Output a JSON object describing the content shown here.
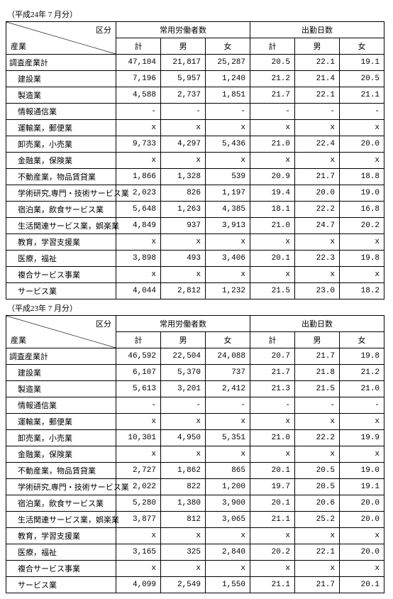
{
  "tables": [
    {
      "period": "（平成24年 7 月分）",
      "headers": {
        "kubun": "区分",
        "sangyo": "産業",
        "group1": "常用労働者数",
        "group2": "出勤日数",
        "cols": [
          "計",
          "男",
          "女",
          "計",
          "男",
          "女"
        ]
      },
      "rows": [
        {
          "label": "調査産業計",
          "indent": false,
          "cells": [
            "47,104",
            "21,817",
            "25,287",
            "20.5",
            "22.1",
            "19.1"
          ]
        },
        {
          "label": "建設業",
          "indent": true,
          "cells": [
            "7,196",
            "5,957",
            "1,240",
            "21.2",
            "21.4",
            "20.5"
          ]
        },
        {
          "label": "製造業",
          "indent": true,
          "cells": [
            "4,588",
            "2,737",
            "1,851",
            "21.7",
            "22.1",
            "21.1"
          ]
        },
        {
          "label": "情報通信業",
          "indent": true,
          "cells": [
            "-",
            "-",
            "-",
            "-",
            "-",
            "-"
          ]
        },
        {
          "label": "運輸業，郵便業",
          "indent": true,
          "cells": [
            "x",
            "x",
            "x",
            "x",
            "x",
            "x"
          ]
        },
        {
          "label": "卸売業，小売業",
          "indent": true,
          "cells": [
            "9,733",
            "4,297",
            "5,436",
            "21.0",
            "22.4",
            "20.0"
          ]
        },
        {
          "label": "金融業，保険業",
          "indent": true,
          "cells": [
            "x",
            "x",
            "x",
            "x",
            "x",
            "x"
          ]
        },
        {
          "label": "不動産業，物品賃貸業",
          "indent": true,
          "cells": [
            "1,866",
            "1,328",
            "539",
            "20.9",
            "21.7",
            "18.8"
          ]
        },
        {
          "label": "学術研究,専門・技術サービス業",
          "indent": true,
          "cells": [
            "2,023",
            "826",
            "1,197",
            "19.4",
            "20.0",
            "19.0"
          ]
        },
        {
          "label": "宿泊業，飲食サービス業",
          "indent": true,
          "cells": [
            "5,648",
            "1,263",
            "4,385",
            "18.1",
            "22.2",
            "16.8"
          ]
        },
        {
          "label": "生活関連サービス業，娯楽業",
          "indent": true,
          "cells": [
            "4,849",
            "937",
            "3,913",
            "21.0",
            "24.7",
            "20.2"
          ]
        },
        {
          "label": "教育，学習支援業",
          "indent": true,
          "cells": [
            "x",
            "x",
            "x",
            "x",
            "x",
            "x"
          ]
        },
        {
          "label": "医療，福祉",
          "indent": true,
          "cells": [
            "3,898",
            "493",
            "3,406",
            "20.1",
            "22.3",
            "19.8"
          ]
        },
        {
          "label": "複合サービス事業",
          "indent": true,
          "cells": [
            "x",
            "x",
            "x",
            "x",
            "x",
            "x"
          ]
        },
        {
          "label": "サービス業",
          "indent": true,
          "cells": [
            "4,044",
            "2,812",
            "1,232",
            "21.5",
            "23.0",
            "18.2"
          ]
        }
      ]
    },
    {
      "period": "（平成23年 7 月分）",
      "headers": {
        "kubun": "区分",
        "sangyo": "産業",
        "group1": "常用労働者数",
        "group2": "出勤日数",
        "cols": [
          "計",
          "男",
          "女",
          "計",
          "男",
          "女"
        ]
      },
      "rows": [
        {
          "label": "調査産業計",
          "indent": false,
          "cells": [
            "46,592",
            "22,504",
            "24,088",
            "20.7",
            "21.7",
            "19.8"
          ]
        },
        {
          "label": "建設業",
          "indent": true,
          "cells": [
            "6,107",
            "5,370",
            "737",
            "21.7",
            "21.8",
            "21.2"
          ]
        },
        {
          "label": "製造業",
          "indent": true,
          "cells": [
            "5,613",
            "3,201",
            "2,412",
            "21.3",
            "21.5",
            "21.0"
          ]
        },
        {
          "label": "情報通信業",
          "indent": true,
          "cells": [
            "-",
            "-",
            "-",
            "-",
            "-",
            "-"
          ]
        },
        {
          "label": "運輸業，郵便業",
          "indent": true,
          "cells": [
            "x",
            "x",
            "x",
            "x",
            "x",
            "x"
          ]
        },
        {
          "label": "卸売業，小売業",
          "indent": true,
          "cells": [
            "10,301",
            "4,950",
            "5,351",
            "21.0",
            "22.2",
            "19.9"
          ]
        },
        {
          "label": "金融業，保険業",
          "indent": true,
          "cells": [
            "x",
            "x",
            "x",
            "x",
            "x",
            "x"
          ]
        },
        {
          "label": "不動産業，物品賃貸業",
          "indent": true,
          "cells": [
            "2,727",
            "1,862",
            "865",
            "20.1",
            "20.5",
            "19.0"
          ]
        },
        {
          "label": "学術研究,専門・技術サービス業",
          "indent": true,
          "cells": [
            "2,022",
            "822",
            "1,200",
            "19.7",
            "20.5",
            "19.1"
          ]
        },
        {
          "label": "宿泊業，飲食サービス業",
          "indent": true,
          "cells": [
            "5,280",
            "1,380",
            "3,900",
            "20.1",
            "20.6",
            "20.0"
          ]
        },
        {
          "label": "生活関連サービス業，娯楽業",
          "indent": true,
          "cells": [
            "3,877",
            "812",
            "3,065",
            "21.1",
            "25.2",
            "20.0"
          ]
        },
        {
          "label": "教育，学習支援業",
          "indent": true,
          "cells": [
            "x",
            "x",
            "x",
            "x",
            "x",
            "x"
          ]
        },
        {
          "label": "医療，福祉",
          "indent": true,
          "cells": [
            "3,165",
            "325",
            "2,840",
            "20.2",
            "22.1",
            "20.0"
          ]
        },
        {
          "label": "複合サービス事業",
          "indent": true,
          "cells": [
            "x",
            "x",
            "x",
            "x",
            "x",
            "x"
          ]
        },
        {
          "label": "サービス業",
          "indent": true,
          "cells": [
            "4,099",
            "2,549",
            "1,550",
            "21.1",
            "21.7",
            "20.1"
          ]
        }
      ]
    }
  ]
}
